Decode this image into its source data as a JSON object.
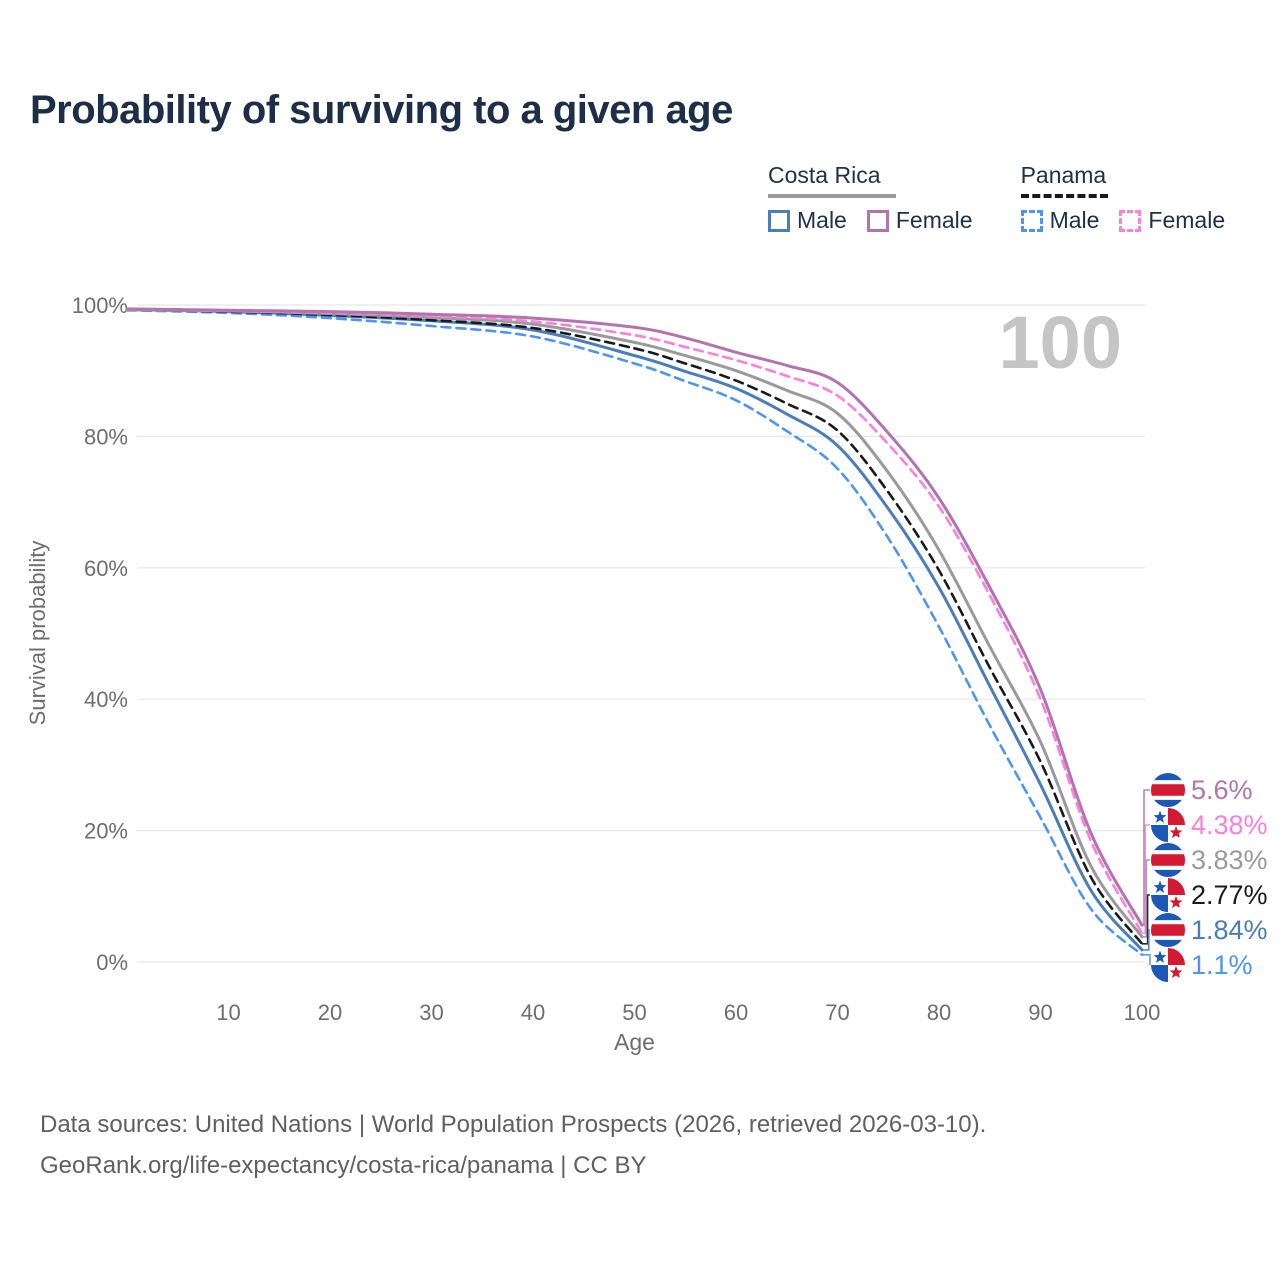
{
  "title": "Probability of surviving to a given age",
  "watermark": "100",
  "colors": {
    "title_text": "#1d2e49",
    "legend_text": "#1e3148",
    "axis_text": "#6e6e6e",
    "gridline": "#e7e7e7",
    "watermark": "#c5c5c5",
    "footer_text": "#606060",
    "flag_red": "#d41a33",
    "flag_blue": "#1b58b8"
  },
  "legend": {
    "groups": [
      {
        "name": "Costa Rica",
        "underline": {
          "style": "solid",
          "color": "#9a9a9a"
        },
        "items": [
          {
            "label": "Male",
            "color": "#4a7eba",
            "dashed": false
          },
          {
            "label": "Female",
            "color": "#b273ae",
            "dashed": false
          }
        ]
      },
      {
        "name": "Panama",
        "underline": {
          "style": "dashed",
          "color": "#1a1a1a"
        },
        "items": [
          {
            "label": "Male",
            "color": "#4f95f0",
            "dashed": true
          },
          {
            "label": "Female",
            "color": "#fb80dc",
            "dashed": true
          }
        ]
      }
    ]
  },
  "chart_data": {
    "type": "line",
    "title": "Probability of surviving to a given age",
    "xlabel": "Age",
    "ylabel": "Survival probability",
    "xlim": [
      0,
      100
    ],
    "ylim": [
      0,
      100
    ],
    "grid": "horizontal",
    "legend_position": "top-right",
    "x_ticks": [
      10,
      20,
      30,
      40,
      50,
      60,
      70,
      80,
      90,
      100
    ],
    "y_ticks": [
      {
        "value": 0,
        "label": "0%"
      },
      {
        "value": 20,
        "label": "20%"
      },
      {
        "value": 40,
        "label": "40%"
      },
      {
        "value": 60,
        "label": "60%"
      },
      {
        "value": 80,
        "label": "80%"
      },
      {
        "value": 100,
        "label": "100%"
      }
    ],
    "x": [
      0,
      10,
      20,
      30,
      40,
      50,
      55,
      60,
      65,
      70,
      75,
      80,
      85,
      90,
      95,
      100
    ],
    "series": [
      {
        "name": "Costa Rica Female",
        "country": "costa-rica",
        "sex": "female",
        "color": "#b273ae",
        "dashed": false,
        "end_label": "5.6%",
        "values": [
          99.4,
          99.2,
          99.0,
          98.6,
          98.0,
          96.6,
          95.0,
          92.8,
          90.8,
          88.2,
          80.5,
          70.6,
          57.0,
          41.5,
          19.5,
          5.6
        ]
      },
      {
        "name": "Panama Female",
        "country": "panama",
        "sex": "female",
        "color": "#fb80dc",
        "dashed": true,
        "end_label": "4.38%",
        "values": [
          99.4,
          99.1,
          98.8,
          98.3,
          97.5,
          95.4,
          93.6,
          91.6,
          89.2,
          86.2,
          78.8,
          69.3,
          55.8,
          40.0,
          18.3,
          4.38
        ]
      },
      {
        "name": "Costa Rica Both sexes",
        "country": "costa-rica",
        "sex": "both",
        "color": "#9a9a9a",
        "dashed": false,
        "end_label": "3.83%",
        "values": [
          99.3,
          99.1,
          98.7,
          98.1,
          97.1,
          94.3,
          92.3,
          90.0,
          87.0,
          83.5,
          74.5,
          62.7,
          48.0,
          33.5,
          14.5,
          3.83
        ]
      },
      {
        "name": "Panama Both sexes",
        "country": "panama",
        "sex": "both",
        "color": "#1a1a1a",
        "dashed": true,
        "end_label": "2.77%",
        "values": [
          99.3,
          99.0,
          98.5,
          97.7,
          96.5,
          93.4,
          91.1,
          88.5,
          85.0,
          80.9,
          71.5,
          59.6,
          44.8,
          30.5,
          12.8,
          2.77
        ]
      },
      {
        "name": "Costa Rica Male",
        "country": "costa-rica",
        "sex": "male",
        "color": "#4a7eba",
        "dashed": false,
        "end_label": "1.84%",
        "values": [
          99.3,
          99.0,
          98.4,
          97.6,
          96.2,
          92.3,
          89.9,
          87.3,
          83.4,
          78.6,
          69.0,
          57.0,
          42.0,
          27.0,
          10.8,
          1.84
        ]
      },
      {
        "name": "Panama Male",
        "country": "panama",
        "sex": "male",
        "color": "#4f95f0",
        "dashed": true,
        "end_label": "1.1%",
        "values": [
          99.2,
          98.8,
          98.0,
          96.8,
          95.2,
          91.1,
          88.4,
          85.5,
          80.8,
          75.1,
          64.5,
          51.0,
          36.0,
          22.0,
          8.0,
          1.1
        ]
      }
    ]
  },
  "footer": {
    "line1": "Data sources: United Nations | World Population Prospects (2026, retrieved 2026-03-10).",
    "line2": "GeoRank.org/life-expectancy/costa-rica/panama | CC BY"
  }
}
